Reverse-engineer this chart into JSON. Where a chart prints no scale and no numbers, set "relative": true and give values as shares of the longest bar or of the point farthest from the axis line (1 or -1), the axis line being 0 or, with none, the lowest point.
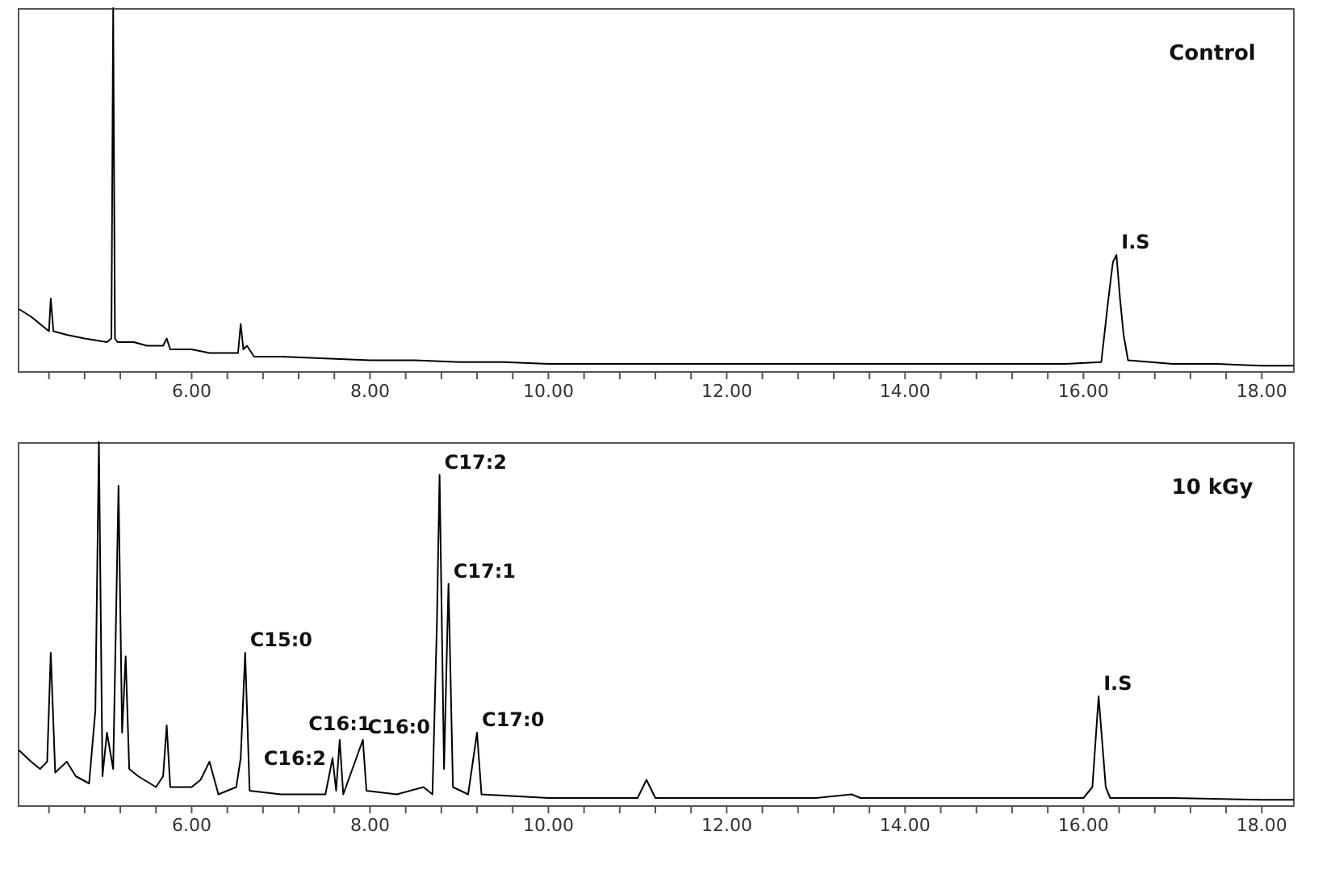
{
  "chart_data": [
    {
      "type": "line",
      "relative": true,
      "tick_labels": "x",
      "grid": false,
      "marker": "none",
      "line_style": "solid",
      "x": [
        4.07,
        4.2,
        4.35,
        4.4,
        4.42,
        4.45,
        4.6,
        4.8,
        5.05,
        5.1,
        5.12,
        5.14,
        5.17,
        5.35,
        5.5,
        5.68,
        5.72,
        5.76,
        5.8,
        6.0,
        6.2,
        6.4,
        6.52,
        6.55,
        6.58,
        6.62,
        6.7,
        7.0,
        7.5,
        8.0,
        8.5,
        9.0,
        9.5,
        10.0,
        11.0,
        12.0,
        13.0,
        14.0,
        15.0,
        15.8,
        16.2,
        16.28,
        16.33,
        16.37,
        16.41,
        16.45,
        16.5,
        17.0,
        17.5,
        18.0,
        18.35
      ],
      "series": [
        {
          "color": "#000000",
          "values": [
            0.17,
            0.15,
            0.12,
            0.11,
            0.2,
            0.11,
            0.1,
            0.09,
            0.08,
            0.09,
            1.0,
            0.09,
            0.08,
            0.08,
            0.07,
            0.07,
            0.09,
            0.06,
            0.06,
            0.06,
            0.05,
            0.05,
            0.05,
            0.13,
            0.06,
            0.07,
            0.04,
            0.04,
            0.035,
            0.03,
            0.03,
            0.025,
            0.025,
            0.02,
            0.02,
            0.02,
            0.02,
            0.02,
            0.02,
            0.02,
            0.025,
            0.2,
            0.3,
            0.32,
            0.2,
            0.1,
            0.03,
            0.02,
            0.02,
            0.015,
            0.015
          ]
        }
      ],
      "xlim": [
        4.05,
        18.35
      ],
      "xticks": [
        {
          "value": 4.4,
          "label": null
        },
        {
          "value": 4.8,
          "label": null
        },
        {
          "value": 5.2,
          "label": null
        },
        {
          "value": 5.6,
          "label": null
        },
        {
          "value": 6,
          "label": "6.00"
        },
        {
          "value": 6.4,
          "label": null
        },
        {
          "value": 6.8,
          "label": null
        },
        {
          "value": 7.2,
          "label": null
        },
        {
          "value": 7.6,
          "label": null
        },
        {
          "value": 8,
          "label": "8.00"
        },
        {
          "value": 8.4,
          "label": null
        },
        {
          "value": 8.8,
          "label": null
        },
        {
          "value": 9.2,
          "label": null
        },
        {
          "value": 9.6,
          "label": null
        },
        {
          "value": 10,
          "label": "10.00"
        },
        {
          "value": 10.4,
          "label": null
        },
        {
          "value": 10.8,
          "label": null
        },
        {
          "value": 11.2,
          "label": null
        },
        {
          "value": 11.6,
          "label": null
        },
        {
          "value": 12,
          "label": "12.00"
        },
        {
          "value": 12.4,
          "label": null
        },
        {
          "value": 12.8,
          "label": null
        },
        {
          "value": 13.2,
          "label": null
        },
        {
          "value": 13.6,
          "label": null
        },
        {
          "value": 14,
          "label": "14.00"
        },
        {
          "value": 14.4,
          "label": null
        },
        {
          "value": 14.8,
          "label": null
        },
        {
          "value": 15.2,
          "label": null
        },
        {
          "value": 15.6,
          "label": null
        },
        {
          "value": 16,
          "label": "16.00"
        },
        {
          "value": 16.4,
          "label": null
        },
        {
          "value": 16.8,
          "label": null
        },
        {
          "value": 17.2,
          "label": null
        },
        {
          "value": 17.6,
          "label": null
        },
        {
          "value": 18,
          "label": "18.00"
        }
      ],
      "annotations": [
        "Control",
        {
          "text": "I.S",
          "x": 16.37,
          "y": 0.32
        }
      ]
    },
    {
      "type": "line",
      "relative": true,
      "tick_labels": "x",
      "grid": false,
      "marker": "none",
      "line_style": "solid",
      "x": [
        4.07,
        4.2,
        4.3,
        4.38,
        4.42,
        4.47,
        4.6,
        4.7,
        4.85,
        4.92,
        4.96,
        5.0,
        5.05,
        5.12,
        5.18,
        5.22,
        5.26,
        5.3,
        5.4,
        5.6,
        5.68,
        5.72,
        5.76,
        6.0,
        6.1,
        6.2,
        6.3,
        6.5,
        6.55,
        6.6,
        6.65,
        7.0,
        7.5,
        7.58,
        7.62,
        7.66,
        7.7,
        7.92,
        7.96,
        8.3,
        8.6,
        8.7,
        8.75,
        8.78,
        8.83,
        8.88,
        8.93,
        9.1,
        9.2,
        9.25,
        10.0,
        11.0,
        11.1,
        11.2,
        12.0,
        13.0,
        13.4,
        13.5,
        15.0,
        16.0,
        16.1,
        16.17,
        16.25,
        16.3,
        17.0,
        18.0,
        18.35
      ],
      "series": [
        {
          "color": "#000000",
          "values": [
            0.15,
            0.12,
            0.1,
            0.12,
            0.42,
            0.09,
            0.12,
            0.08,
            0.06,
            0.26,
            1.0,
            0.08,
            0.2,
            0.1,
            0.88,
            0.2,
            0.41,
            0.1,
            0.08,
            0.05,
            0.08,
            0.22,
            0.05,
            0.05,
            0.07,
            0.12,
            0.03,
            0.05,
            0.13,
            0.42,
            0.04,
            0.03,
            0.03,
            0.13,
            0.04,
            0.18,
            0.03,
            0.18,
            0.04,
            0.03,
            0.05,
            0.03,
            0.5,
            0.91,
            0.1,
            0.61,
            0.05,
            0.03,
            0.2,
            0.03,
            0.02,
            0.02,
            0.07,
            0.02,
            0.02,
            0.02,
            0.03,
            0.02,
            0.02,
            0.02,
            0.05,
            0.3,
            0.05,
            0.02,
            0.02,
            0.015,
            0.015
          ]
        }
      ],
      "xlim": [
        4.05,
        18.35
      ],
      "xticks": [
        {
          "value": 4.4,
          "label": null
        },
        {
          "value": 4.8,
          "label": null
        },
        {
          "value": 5.2,
          "label": null
        },
        {
          "value": 5.6,
          "label": null
        },
        {
          "value": 6,
          "label": "6.00"
        },
        {
          "value": 6.4,
          "label": null
        },
        {
          "value": 6.8,
          "label": null
        },
        {
          "value": 7.2,
          "label": null
        },
        {
          "value": 7.6,
          "label": null
        },
        {
          "value": 8,
          "label": "8.00"
        },
        {
          "value": 8.4,
          "label": null
        },
        {
          "value": 8.8,
          "label": null
        },
        {
          "value": 9.2,
          "label": null
        },
        {
          "value": 9.6,
          "label": null
        },
        {
          "value": 10,
          "label": "10.00"
        },
        {
          "value": 10.4,
          "label": null
        },
        {
          "value": 10.8,
          "label": null
        },
        {
          "value": 11.2,
          "label": null
        },
        {
          "value": 11.6,
          "label": null
        },
        {
          "value": 12,
          "label": "12.00"
        },
        {
          "value": 12.4,
          "label": null
        },
        {
          "value": 12.8,
          "label": null
        },
        {
          "value": 13.2,
          "label": null
        },
        {
          "value": 13.6,
          "label": null
        },
        {
          "value": 14,
          "label": "14.00"
        },
        {
          "value": 14.4,
          "label": null
        },
        {
          "value": 14.8,
          "label": null
        },
        {
          "value": 15.2,
          "label": null
        },
        {
          "value": 15.6,
          "label": null
        },
        {
          "value": 16,
          "label": "16.00"
        },
        {
          "value": 16.4,
          "label": null
        },
        {
          "value": 16.8,
          "label": null
        },
        {
          "value": 17.2,
          "label": null
        },
        {
          "value": 17.6,
          "label": null
        },
        {
          "value": 18,
          "label": "18.00"
        }
      ],
      "annotations": [
        "10 kGy",
        {
          "text": "C17:2",
          "x": 8.78,
          "y": 0.91
        },
        {
          "text": "C17:1",
          "x": 8.88,
          "y": 0.61
        },
        {
          "text": "C15:0",
          "x": 6.6,
          "y": 0.42
        },
        {
          "text": "C16:1",
          "x": 7.66,
          "y": 0.18
        },
        {
          "text": "C16:2",
          "x": 7.58,
          "y": 0.13
        },
        {
          "text": "C16:0",
          "x": 7.92,
          "y": 0.18
        },
        {
          "text": "C17:0",
          "x": 9.2,
          "y": 0.2
        },
        {
          "text": "I.S",
          "x": 16.17,
          "y": 0.3
        }
      ]
    }
  ]
}
